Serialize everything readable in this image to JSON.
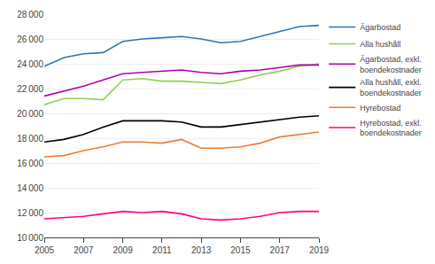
{
  "chart_data": {
    "type": "line",
    "x": [
      2005,
      2006,
      2007,
      2008,
      2009,
      2010,
      2011,
      2012,
      2013,
      2014,
      2015,
      2016,
      2017,
      2018,
      2019
    ],
    "series": [
      {
        "name": "Ägarbostad",
        "color": "#2e75b6",
        "values": [
          23800,
          24500,
          24800,
          24900,
          25800,
          26000,
          26100,
          26200,
          26000,
          25700,
          25800,
          26200,
          26600,
          27000,
          27100
        ]
      },
      {
        "name": "Alla hushåll",
        "color": "#92d050",
        "values": [
          20700,
          21200,
          21200,
          21100,
          22700,
          22800,
          22600,
          22600,
          22500,
          22400,
          22700,
          23100,
          23400,
          23800,
          24000
        ]
      },
      {
        "name": "Ägarbostad, exkl.\nboendekostnader",
        "color": "#b000b0",
        "values": [
          21400,
          21800,
          22200,
          22700,
          23200,
          23300,
          23400,
          23500,
          23300,
          23200,
          23400,
          23500,
          23700,
          23900,
          23900
        ]
      },
      {
        "name": "Alla hushåll, exkl.\nboendekostnader",
        "color": "#000000",
        "values": [
          17700,
          17900,
          18300,
          18900,
          19400,
          19400,
          19400,
          19300,
          18900,
          18900,
          19100,
          19300,
          19500,
          19700,
          19800
        ]
      },
      {
        "name": "Hyrebostad",
        "color": "#ed7d31",
        "values": [
          16500,
          16600,
          17000,
          17300,
          17700,
          17700,
          17600,
          17900,
          17200,
          17200,
          17300,
          17600,
          18100,
          18300,
          18500
        ]
      },
      {
        "name": "Hyrebostad, exkl.\nboendekostnader",
        "color": "#ff007f",
        "values": [
          11500,
          11600,
          11700,
          11900,
          12100,
          12000,
          12100,
          11900,
          11500,
          11400,
          11500,
          11700,
          12000,
          12100,
          12100
        ]
      }
    ],
    "xlim": [
      2005,
      2019
    ],
    "xticks": [
      2005,
      2007,
      2009,
      2011,
      2013,
      2015,
      2017,
      2019
    ],
    "ylim": [
      10000,
      28000
    ],
    "yticks": [
      {
        "value": 10000,
        "label": "10 000"
      },
      {
        "value": 12000,
        "label": "12 000"
      },
      {
        "value": 14000,
        "label": "14 000"
      },
      {
        "value": 16000,
        "label": "16 000"
      },
      {
        "value": 18000,
        "label": "18 000"
      },
      {
        "value": 20000,
        "label": "20 000"
      },
      {
        "value": 22000,
        "label": "22 000"
      },
      {
        "value": 24000,
        "label": "24 000"
      },
      {
        "value": 26000,
        "label": "26 000"
      },
      {
        "value": 28000,
        "label": "28 000"
      }
    ],
    "grid": true,
    "legend": "right"
  }
}
